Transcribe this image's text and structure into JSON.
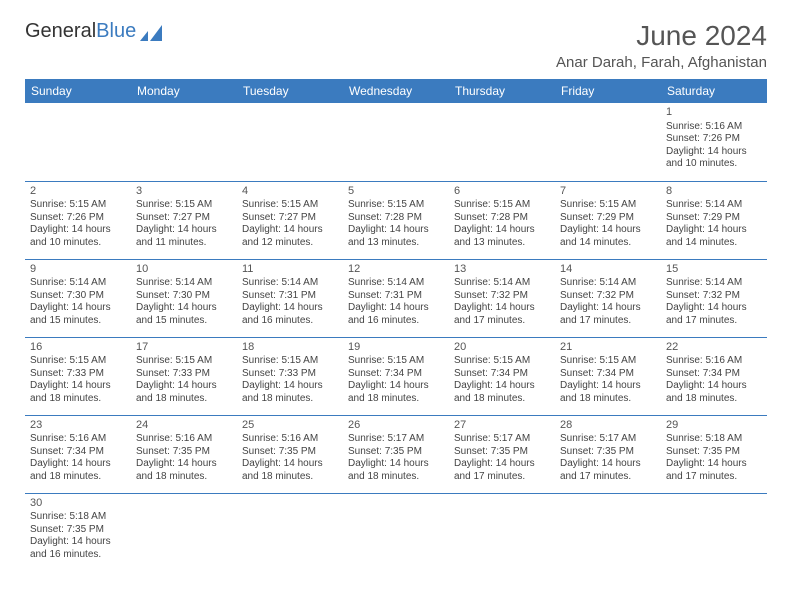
{
  "logo": {
    "text1": "General",
    "text2": "Blue"
  },
  "title": "June 2024",
  "location": "Anar Darah, Farah, Afghanistan",
  "colors": {
    "header_bg": "#3b7bbf",
    "header_text": "#ffffff",
    "border": "#3b7bbf",
    "logo_blue": "#3b7bbf"
  },
  "weekdays": [
    "Sunday",
    "Monday",
    "Tuesday",
    "Wednesday",
    "Thursday",
    "Friday",
    "Saturday"
  ],
  "weeks": [
    [
      null,
      null,
      null,
      null,
      null,
      null,
      {
        "d": "1",
        "sr": "Sunrise: 5:16 AM",
        "ss": "Sunset: 7:26 PM",
        "dl": "Daylight: 14 hours and 10 minutes."
      }
    ],
    [
      {
        "d": "2",
        "sr": "Sunrise: 5:15 AM",
        "ss": "Sunset: 7:26 PM",
        "dl": "Daylight: 14 hours and 10 minutes."
      },
      {
        "d": "3",
        "sr": "Sunrise: 5:15 AM",
        "ss": "Sunset: 7:27 PM",
        "dl": "Daylight: 14 hours and 11 minutes."
      },
      {
        "d": "4",
        "sr": "Sunrise: 5:15 AM",
        "ss": "Sunset: 7:27 PM",
        "dl": "Daylight: 14 hours and 12 minutes."
      },
      {
        "d": "5",
        "sr": "Sunrise: 5:15 AM",
        "ss": "Sunset: 7:28 PM",
        "dl": "Daylight: 14 hours and 13 minutes."
      },
      {
        "d": "6",
        "sr": "Sunrise: 5:15 AM",
        "ss": "Sunset: 7:28 PM",
        "dl": "Daylight: 14 hours and 13 minutes."
      },
      {
        "d": "7",
        "sr": "Sunrise: 5:15 AM",
        "ss": "Sunset: 7:29 PM",
        "dl": "Daylight: 14 hours and 14 minutes."
      },
      {
        "d": "8",
        "sr": "Sunrise: 5:14 AM",
        "ss": "Sunset: 7:29 PM",
        "dl": "Daylight: 14 hours and 14 minutes."
      }
    ],
    [
      {
        "d": "9",
        "sr": "Sunrise: 5:14 AM",
        "ss": "Sunset: 7:30 PM",
        "dl": "Daylight: 14 hours and 15 minutes."
      },
      {
        "d": "10",
        "sr": "Sunrise: 5:14 AM",
        "ss": "Sunset: 7:30 PM",
        "dl": "Daylight: 14 hours and 15 minutes."
      },
      {
        "d": "11",
        "sr": "Sunrise: 5:14 AM",
        "ss": "Sunset: 7:31 PM",
        "dl": "Daylight: 14 hours and 16 minutes."
      },
      {
        "d": "12",
        "sr": "Sunrise: 5:14 AM",
        "ss": "Sunset: 7:31 PM",
        "dl": "Daylight: 14 hours and 16 minutes."
      },
      {
        "d": "13",
        "sr": "Sunrise: 5:14 AM",
        "ss": "Sunset: 7:32 PM",
        "dl": "Daylight: 14 hours and 17 minutes."
      },
      {
        "d": "14",
        "sr": "Sunrise: 5:14 AM",
        "ss": "Sunset: 7:32 PM",
        "dl": "Daylight: 14 hours and 17 minutes."
      },
      {
        "d": "15",
        "sr": "Sunrise: 5:14 AM",
        "ss": "Sunset: 7:32 PM",
        "dl": "Daylight: 14 hours and 17 minutes."
      }
    ],
    [
      {
        "d": "16",
        "sr": "Sunrise: 5:15 AM",
        "ss": "Sunset: 7:33 PM",
        "dl": "Daylight: 14 hours and 18 minutes."
      },
      {
        "d": "17",
        "sr": "Sunrise: 5:15 AM",
        "ss": "Sunset: 7:33 PM",
        "dl": "Daylight: 14 hours and 18 minutes."
      },
      {
        "d": "18",
        "sr": "Sunrise: 5:15 AM",
        "ss": "Sunset: 7:33 PM",
        "dl": "Daylight: 14 hours and 18 minutes."
      },
      {
        "d": "19",
        "sr": "Sunrise: 5:15 AM",
        "ss": "Sunset: 7:34 PM",
        "dl": "Daylight: 14 hours and 18 minutes."
      },
      {
        "d": "20",
        "sr": "Sunrise: 5:15 AM",
        "ss": "Sunset: 7:34 PM",
        "dl": "Daylight: 14 hours and 18 minutes."
      },
      {
        "d": "21",
        "sr": "Sunrise: 5:15 AM",
        "ss": "Sunset: 7:34 PM",
        "dl": "Daylight: 14 hours and 18 minutes."
      },
      {
        "d": "22",
        "sr": "Sunrise: 5:16 AM",
        "ss": "Sunset: 7:34 PM",
        "dl": "Daylight: 14 hours and 18 minutes."
      }
    ],
    [
      {
        "d": "23",
        "sr": "Sunrise: 5:16 AM",
        "ss": "Sunset: 7:34 PM",
        "dl": "Daylight: 14 hours and 18 minutes."
      },
      {
        "d": "24",
        "sr": "Sunrise: 5:16 AM",
        "ss": "Sunset: 7:35 PM",
        "dl": "Daylight: 14 hours and 18 minutes."
      },
      {
        "d": "25",
        "sr": "Sunrise: 5:16 AM",
        "ss": "Sunset: 7:35 PM",
        "dl": "Daylight: 14 hours and 18 minutes."
      },
      {
        "d": "26",
        "sr": "Sunrise: 5:17 AM",
        "ss": "Sunset: 7:35 PM",
        "dl": "Daylight: 14 hours and 18 minutes."
      },
      {
        "d": "27",
        "sr": "Sunrise: 5:17 AM",
        "ss": "Sunset: 7:35 PM",
        "dl": "Daylight: 14 hours and 17 minutes."
      },
      {
        "d": "28",
        "sr": "Sunrise: 5:17 AM",
        "ss": "Sunset: 7:35 PM",
        "dl": "Daylight: 14 hours and 17 minutes."
      },
      {
        "d": "29",
        "sr": "Sunrise: 5:18 AM",
        "ss": "Sunset: 7:35 PM",
        "dl": "Daylight: 14 hours and 17 minutes."
      }
    ],
    [
      {
        "d": "30",
        "sr": "Sunrise: 5:18 AM",
        "ss": "Sunset: 7:35 PM",
        "dl": "Daylight: 14 hours and 16 minutes."
      },
      null,
      null,
      null,
      null,
      null,
      null
    ]
  ]
}
